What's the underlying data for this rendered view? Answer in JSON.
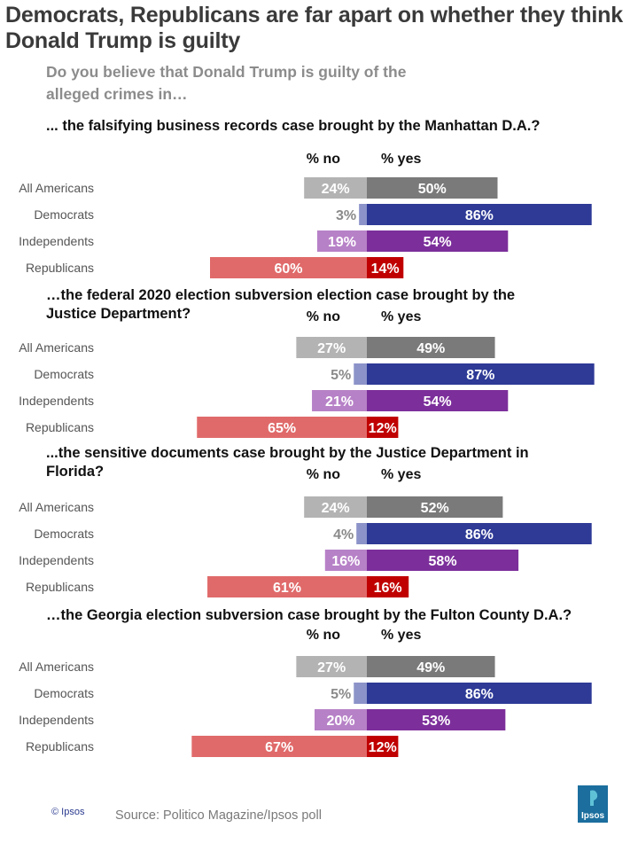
{
  "header": {
    "title": "Democrats, Republicans are far apart on whether they think Donald Trump is guilty",
    "subtitle": "Do you believe that Donald Trump is guilty of the alleged crimes in…"
  },
  "chart_data": {
    "type": "bar",
    "orientation": "horizontal-diverging",
    "categories": [
      "All Americans",
      "Democrats",
      "Independents",
      "Republicans"
    ],
    "column_labels": {
      "no": "% no",
      "yes": "% yes"
    },
    "colors": {
      "All Americans": {
        "no": "#b3b3b3",
        "yes": "#7a7a7a"
      },
      "Democrats": {
        "no": "#8c93c9",
        "yes": "#2e3a96"
      },
      "Independents": {
        "no": "#b781c7",
        "yes": "#7c2f9b"
      },
      "Republicans": {
        "no": "#e06a6a",
        "yes": "#c00000"
      }
    },
    "panels": [
      {
        "question": "... the falsifying business records case brought by the Manhattan D.A.?",
        "no": [
          24,
          3,
          19,
          60
        ],
        "yes": [
          50,
          86,
          54,
          14
        ]
      },
      {
        "question": "…the federal 2020 election subversion election case brought by the Justice Department?",
        "no": [
          27,
          5,
          21,
          65
        ],
        "yes": [
          49,
          87,
          54,
          12
        ]
      },
      {
        "question": "...the sensitive documents case brought by the Justice Department in Florida?",
        "no": [
          24,
          4,
          16,
          61
        ],
        "yes": [
          52,
          86,
          58,
          16
        ]
      },
      {
        "question": "…the Georgia election subversion case brought by the Fulton County D.A.?",
        "no": [
          27,
          5,
          20,
          67
        ],
        "yes": [
          49,
          86,
          53,
          12
        ]
      }
    ]
  },
  "footer": {
    "copyright": "© Ipsos",
    "source": "Source: Politico Magazine/Ipsos poll",
    "logo_text": "Ipsos"
  }
}
